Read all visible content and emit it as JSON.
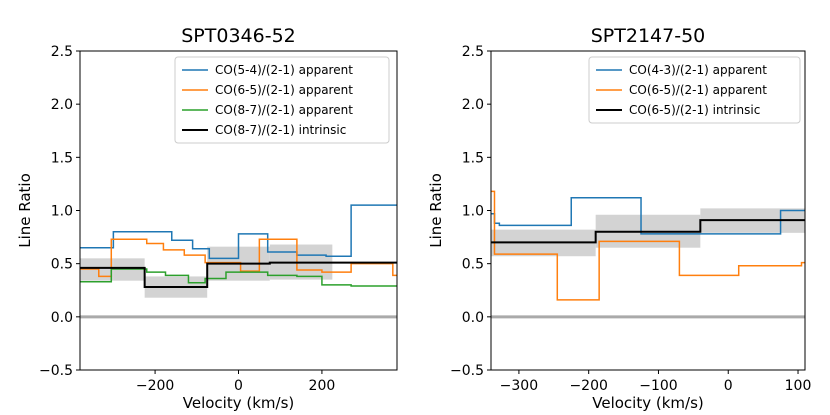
{
  "chart_data": [
    {
      "type": "line",
      "drawstyle": "steps-post",
      "title": "SPT0346-52",
      "xlabel": "Velocity (km/s)",
      "ylabel": "Line Ratio",
      "xlim": [
        -380,
        380
      ],
      "ylim": [
        -0.5,
        2.5
      ],
      "xticks": [
        -200,
        0,
        200
      ],
      "xtick_labels": [
        "−200",
        "0",
        "200"
      ],
      "yticks": [
        -0.5,
        0.0,
        0.5,
        1.0,
        1.5,
        2.0,
        2.5
      ],
      "ytick_labels": [
        "−0.5",
        "0.0",
        "0.5",
        "1.0",
        "1.5",
        "2.0",
        "2.5"
      ],
      "zero_line": 0.0,
      "legend_position": "top-right",
      "series": [
        {
          "name": "CO(5-4)/(2-1) apparent",
          "color": "#1f77b4",
          "x": [
            -380,
            -300,
            -160,
            -110,
            -70,
            0,
            70,
            140,
            210,
            270
          ],
          "y": [
            0.65,
            0.8,
            0.72,
            0.64,
            0.55,
            0.78,
            0.61,
            0.58,
            0.57,
            1.05
          ]
        },
        {
          "name": "CO(6-5)/(2-1) apparent",
          "color": "#ff7f0e",
          "x": [
            -380,
            -335,
            -305,
            -220,
            -180,
            -130,
            -80,
            5,
            50,
            140,
            200,
            270,
            370
          ],
          "y": [
            0.45,
            0.38,
            0.73,
            0.69,
            0.63,
            0.58,
            0.51,
            0.43,
            0.73,
            0.44,
            0.42,
            0.5,
            0.39
          ]
        },
        {
          "name": "CO(8-7)/(2-1) apparent",
          "color": "#2ca02c",
          "x": [
            -380,
            -305,
            -220,
            -175,
            -120,
            -80,
            -30,
            70,
            140,
            200,
            270
          ],
          "y": [
            0.33,
            0.45,
            0.42,
            0.39,
            0.32,
            0.36,
            0.42,
            0.39,
            0.38,
            0.3,
            0.29
          ]
        },
        {
          "name": "CO(8-7)/(2-1) intrinsic",
          "color": "#000000",
          "x": [
            -380,
            -300,
            -225,
            -75,
            75,
            225
          ],
          "y": [
            0.46,
            0.46,
            0.28,
            0.5,
            0.51,
            0.51
          ],
          "band_lower": [
            0.34,
            0.34,
            0.18,
            0.34,
            0.35,
            0.28
          ],
          "band_upper": [
            0.55,
            0.55,
            0.38,
            0.66,
            0.68,
            0.75
          ]
        }
      ]
    },
    {
      "type": "line",
      "drawstyle": "steps-post",
      "title": "SPT2147-50",
      "xlabel": "Velocity (km/s)",
      "ylabel": "Line Ratio",
      "xlim": [
        -340,
        110
      ],
      "ylim": [
        -0.5,
        2.5
      ],
      "xticks": [
        -300,
        -200,
        -100,
        0,
        100
      ],
      "xtick_labels": [
        "−300",
        "−200",
        "−100",
        "0",
        "100"
      ],
      "yticks": [
        -0.5,
        0.0,
        0.5,
        1.0,
        1.5,
        2.0,
        2.5
      ],
      "ytick_labels": [
        "−0.5",
        "0.0",
        "0.5",
        "1.0",
        "1.5",
        "2.0",
        "2.5"
      ],
      "zero_line": 0.0,
      "legend_position": "top-right",
      "series": [
        {
          "name": "CO(4-3)/(2-1) apparent",
          "color": "#1f77b4",
          "x": [
            -340,
            -335,
            -328,
            -225,
            -125,
            -95,
            75,
            110
          ],
          "y": [
            0.97,
            0.88,
            0.86,
            1.12,
            0.78,
            0.78,
            1.0,
            1.0
          ]
        },
        {
          "name": "CO(6-5)/(2-1) apparent",
          "color": "#ff7f0e",
          "x": [
            -340,
            -335,
            -245,
            -185,
            -70,
            15,
            105,
            110
          ],
          "y": [
            1.18,
            0.59,
            0.16,
            0.71,
            0.39,
            0.48,
            0.51,
            0.51
          ]
        },
        {
          "name": "CO(6-5)/(2-1) intrinsic",
          "color": "#000000",
          "x": [
            -340,
            -190,
            -40,
            110
          ],
          "y": [
            0.7,
            0.8,
            0.91,
            0.91
          ],
          "band_lower": [
            0.57,
            0.65,
            0.79,
            0.79
          ],
          "band_upper": [
            0.82,
            0.96,
            1.02,
            1.02
          ]
        }
      ]
    }
  ]
}
